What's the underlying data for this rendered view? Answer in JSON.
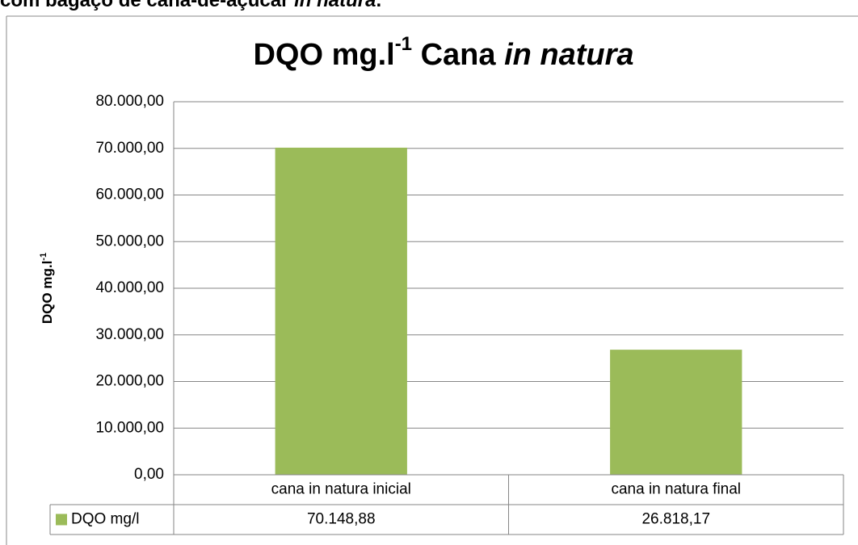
{
  "caption": {
    "text": "com bagaço de cana-de-açúcar ",
    "italic": "in natura",
    "end": "."
  },
  "chart_data": {
    "type": "bar",
    "title": {
      "main": "DQO mg.l",
      "sup": "-1",
      "rest": " Cana ",
      "italic": "in natura"
    },
    "ylabel": {
      "main": "DQO mg.l",
      "sup": "-1"
    },
    "categories": [
      "cana in natura inicial",
      "cana in natura final"
    ],
    "series": [
      {
        "name": "DQO mg/l",
        "color": "#9bbb59",
        "values": [
          70148.88,
          26818.17
        ],
        "value_labels": [
          "70.148,88",
          "26.818,17"
        ]
      }
    ],
    "ylim": [
      0,
      80000
    ],
    "yticks": [
      {
        "value": 0,
        "label": "0,00"
      },
      {
        "value": 10000,
        "label": "10.000,00"
      },
      {
        "value": 20000,
        "label": "20.000,00"
      },
      {
        "value": 30000,
        "label": "30.000,00"
      },
      {
        "value": 40000,
        "label": "40.000,00"
      },
      {
        "value": 50000,
        "label": "50.000,00"
      },
      {
        "value": 60000,
        "label": "60.000,00"
      },
      {
        "value": 70000,
        "label": "70.000,00"
      },
      {
        "value": 80000,
        "label": "80.000,00"
      }
    ],
    "grid": true,
    "data_table": true
  }
}
